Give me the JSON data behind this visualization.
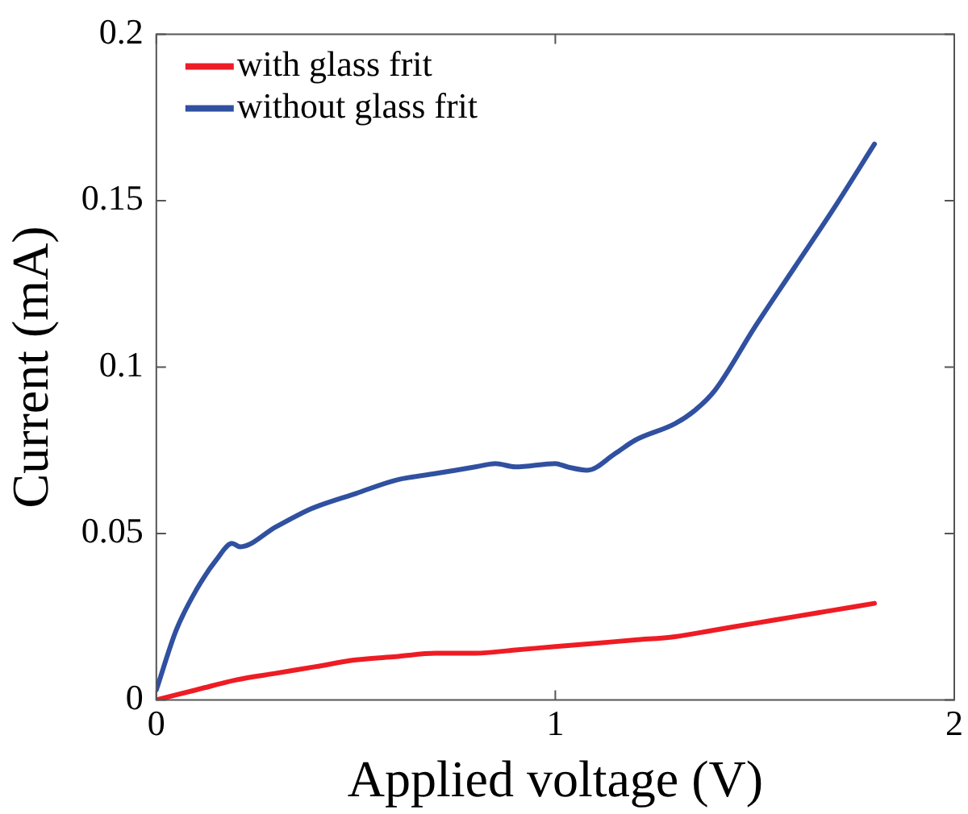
{
  "chart_data": {
    "type": "line",
    "xlabel": "Applied voltage (V)",
    "ylabel": "Current (mA)",
    "xlim": [
      0,
      2
    ],
    "xticks": [
      0,
      1,
      2
    ],
    "ylim": [
      0,
      0.2
    ],
    "yticks": [
      0,
      0.05,
      0.1,
      0.15,
      0.2
    ],
    "grid": false,
    "legend": "top left",
    "marker": "none",
    "line_style": "solid",
    "series": [
      {
        "name": "with glass frit",
        "color": "#ee1c24",
        "x": [
          0,
          0.1,
          0.2,
          0.3,
          0.4,
          0.5,
          0.6,
          0.7,
          0.8,
          0.9,
          1.0,
          1.1,
          1.2,
          1.3,
          1.4,
          1.5,
          1.6,
          1.7,
          1.8
        ],
        "values": [
          0,
          0.003,
          0.006,
          0.008,
          0.01,
          0.012,
          0.013,
          0.014,
          0.014,
          0.015,
          0.016,
          0.017,
          0.018,
          0.019,
          0.021,
          0.023,
          0.025,
          0.027,
          0.029
        ]
      },
      {
        "name": "without glass frit",
        "color": "#3050a0",
        "x": [
          0,
          0.05,
          0.1,
          0.15,
          0.19,
          0.21,
          0.3,
          0.38,
          0.4,
          0.5,
          0.6,
          0.7,
          0.8,
          0.85,
          0.9,
          1.0,
          1.03,
          1.08,
          1.15,
          1.2,
          1.3,
          1.35,
          1.4,
          1.5,
          1.6,
          1.7,
          1.8
        ],
        "values": [
          0.003,
          0.021,
          0.033,
          0.042,
          0.047,
          0.046,
          0.052,
          0.057,
          0.058,
          0.062,
          0.066,
          0.068,
          0.07,
          0.071,
          0.07,
          0.071,
          0.07,
          0.069,
          0.074,
          0.078,
          0.083,
          0.087,
          0.093,
          0.112,
          0.13,
          0.148,
          0.167
        ]
      }
    ]
  }
}
